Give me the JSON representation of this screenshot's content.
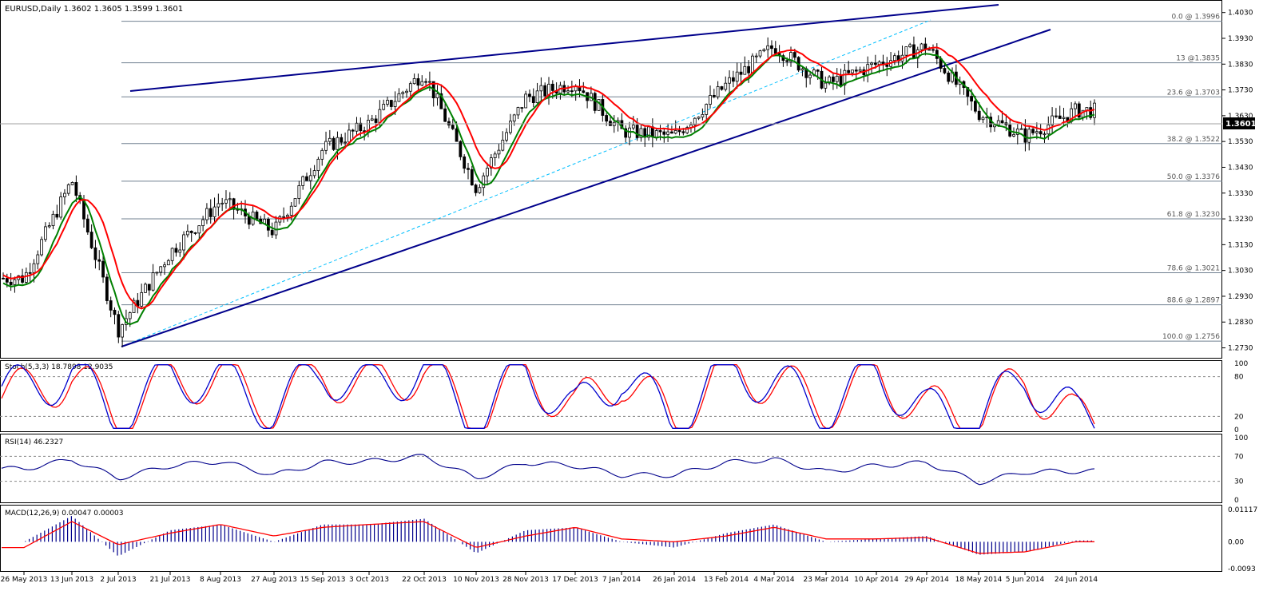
{
  "header": {
    "symbol_line": "EURUSD,Daily  1.3602 1.3605 1.3599 1.3601"
  },
  "colors": {
    "candle": "#000000",
    "fast_ma": "#ff0000",
    "slow_ma": "#008000",
    "ma_highlight": "#ffd400",
    "trendline": "#00008b",
    "fib_level": "#708090",
    "diagonal": "#00bfff",
    "stoch_main": "#0000cd",
    "stoch_signal": "#ff0000",
    "rsi": "#00008b",
    "macd_hist": "#00008b",
    "macd_signal": "#ff0000"
  },
  "price_pane": {
    "ticks": [
      "1.4030",
      "1.3930",
      "1.3830",
      "1.3730",
      "1.3630",
      "1.3530",
      "1.3430",
      "1.3330",
      "1.3230",
      "1.3130",
      "1.3030",
      "1.2930",
      "1.2830",
      "1.2730"
    ],
    "last_price_label": "1.3601",
    "fib_labels": [
      "0.0 @ 1.3996",
      "13 @1.3835",
      "23.6 @ 1.3703",
      "38.2 @ 1.3522",
      "50.0 @ 1.3376",
      "61.8 @ 1.3230",
      "78.6 @ 1.3021",
      "88.6 @ 1.2897",
      "100.0 @ 1.2756"
    ]
  },
  "stoch_pane": {
    "title": "Stoch(5,3,3) 18.7898 12.9035",
    "ticks": [
      "100",
      "80",
      "20",
      "0"
    ]
  },
  "rsi_pane": {
    "title": "RSI(14) 46.2327",
    "ticks": [
      "100",
      "70",
      "30",
      "0"
    ]
  },
  "macd_pane": {
    "title": "MACD(12,26,9) 0.00047 0.00003",
    "ticks": [
      "0.01117",
      "0.00",
      "-0.0093"
    ]
  },
  "x_axis": {
    "labels": [
      "26 May 2013",
      "13 Jun 2013",
      "2 Jul 2013",
      "21 Jul 2013",
      "8 Aug 2013",
      "27 Aug 2013",
      "15 Sep 2013",
      "3 Oct 2013",
      "22 Oct 2013",
      "10 Nov 2013",
      "28 Nov 2013",
      "17 Dec 2013",
      "7 Jan 2014",
      "26 Jan 2014",
      "13 Feb 2014",
      "4 Mar 2014",
      "23 Mar 2014",
      "10 Apr 2014",
      "29 Apr 2014",
      "18 May 2014",
      "5 Jun 2014",
      "24 Jun 2014"
    ]
  },
  "chart_data": [
    {
      "type": "line",
      "title": "EURUSD,Daily  1.3602 1.3605 1.3599 1.3601",
      "x": [
        "26 May 2013",
        "13 Jun 2013",
        "2 Jul 2013",
        "21 Jul 2013",
        "8 Aug 2013",
        "27 Aug 2013",
        "15 Sep 2013",
        "3 Oct 2013",
        "22 Oct 2013",
        "10 Nov 2013",
        "28 Nov 2013",
        "17 Dec 2013",
        "7 Jan 2014",
        "26 Jan 2014",
        "13 Feb 2014",
        "4 Mar 2014",
        "23 Mar 2014",
        "10 Apr 2014",
        "29 Apr 2014",
        "18 May 2014",
        "5 Jun 2014",
        "24 Jun 2014"
      ],
      "series": [
        {
          "values": [
            1.3,
            1.338,
            1.28,
            1.31,
            1.33,
            1.318,
            1.35,
            1.36,
            1.38,
            1.335,
            1.37,
            1.376,
            1.357,
            1.355,
            1.375,
            1.39,
            1.375,
            1.383,
            1.39,
            1.364,
            1.355,
            1.365
          ]
        }
      ],
      "ylim": [
        1.271,
        1.406
      ],
      "fib_levels": [
        1.3996,
        1.3835,
        1.3703,
        1.3522,
        1.3376,
        1.323,
        1.3021,
        1.2897,
        1.2756
      ],
      "last_price": 1.3601
    },
    {
      "type": "line",
      "title": "Stoch(5,3,3) 18.7898 12.9035",
      "x": [
        "26 May 2013",
        "13 Jun 2013",
        "2 Jul 2013",
        "21 Jul 2013",
        "8 Aug 2013",
        "27 Aug 2013",
        "15 Sep 2013",
        "3 Oct 2013",
        "22 Oct 2013",
        "10 Nov 2013",
        "28 Nov 2013",
        "17 Dec 2013",
        "7 Jan 2014",
        "26 Jan 2014",
        "13 Feb 2014",
        "4 Mar 2014",
        "23 Mar 2014",
        "10 Apr 2014",
        "29 Apr 2014",
        "18 May 2014",
        "5 Jun 2014",
        "24 Jun 2014"
      ],
      "series": [
        {
          "values": [
            60,
            85,
            15,
            80,
            75,
            30,
            90,
            60,
            95,
            10,
            90,
            25,
            85,
            10,
            95,
            70,
            30,
            85,
            25,
            15,
            80,
            18.79
          ]
        },
        {
          "values": [
            55,
            80,
            20,
            75,
            78,
            35,
            85,
            65,
            90,
            15,
            85,
            30,
            80,
            15,
            90,
            72,
            35,
            80,
            30,
            20,
            75,
            12.9
          ]
        }
      ],
      "ylim": [
        0,
        100
      ],
      "levels": [
        20,
        80
      ]
    },
    {
      "type": "line",
      "title": "RSI(14) 46.2327",
      "x": [
        "26 May 2013",
        "13 Jun 2013",
        "2 Jul 2013",
        "21 Jul 2013",
        "8 Aug 2013",
        "27 Aug 2013",
        "15 Sep 2013",
        "3 Oct 2013",
        "22 Oct 2013",
        "10 Nov 2013",
        "28 Nov 2013",
        "17 Dec 2013",
        "7 Jan 2014",
        "26 Jan 2014",
        "13 Feb 2014",
        "4 Mar 2014",
        "23 Mar 2014",
        "10 Apr 2014",
        "29 Apr 2014",
        "18 May 2014",
        "5 Jun 2014",
        "24 Jun 2014"
      ],
      "series": [
        {
          "values": [
            50,
            65,
            35,
            55,
            62,
            40,
            60,
            62,
            70,
            35,
            60,
            55,
            40,
            40,
            60,
            65,
            45,
            55,
            60,
            28,
            45,
            46.23
          ]
        }
      ],
      "ylim": [
        0,
        100
      ],
      "levels": [
        30,
        70
      ]
    },
    {
      "type": "bar",
      "title": "MACD(12,26,9) 0.00047 0.00003",
      "x": [
        "26 May 2013",
        "13 Jun 2013",
        "2 Jul 2013",
        "21 Jul 2013",
        "8 Aug 2013",
        "27 Aug 2013",
        "15 Sep 2013",
        "3 Oct 2013",
        "22 Oct 2013",
        "10 Nov 2013",
        "28 Nov 2013",
        "17 Dec 2013",
        "7 Jan 2014",
        "26 Jan 2014",
        "13 Feb 2014",
        "4 Mar 2014",
        "23 Mar 2014",
        "10 Apr 2014",
        "29 Apr 2014",
        "18 May 2014",
        "5 Jun 2014",
        "24 Jun 2014"
      ],
      "series": [
        {
          "values": [
            0.0,
            0.009,
            -0.005,
            0.004,
            0.006,
            0.0,
            0.006,
            0.006,
            0.008,
            -0.004,
            0.004,
            0.005,
            0.0,
            -0.002,
            0.003,
            0.006,
            0.0,
            0.001,
            0.002,
            -0.0045,
            -0.0035,
            0.00047
          ]
        },
        {
          "values": [
            -0.002,
            0.007,
            -0.001,
            0.003,
            0.006,
            0.002,
            0.005,
            0.006,
            0.007,
            -0.002,
            0.002,
            0.005,
            0.001,
            0.0,
            0.002,
            0.005,
            0.001,
            0.001,
            0.0015,
            -0.004,
            -0.0035,
            3e-05
          ]
        }
      ],
      "ylim": [
        -0.0093,
        0.01117
      ]
    }
  ]
}
